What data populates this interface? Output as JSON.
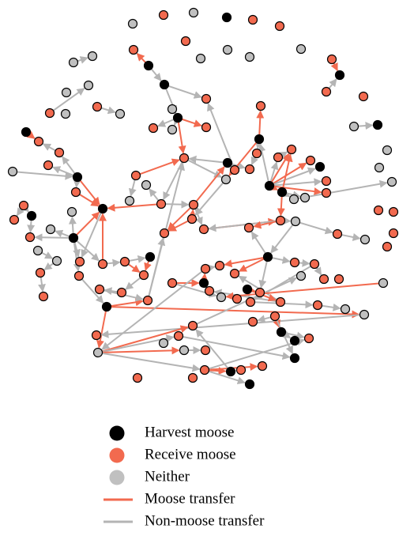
{
  "legend": {
    "items": [
      {
        "label": "Harvest moose",
        "color": "#000000"
      },
      {
        "label": "Receive moose",
        "color": "#f26a4f"
      },
      {
        "label": "Neither",
        "color": "#c0c0c0"
      },
      {
        "label": "Moose transfer",
        "color": "#f26a4f"
      },
      {
        "label": "Non-moose transfer",
        "color": "#b4b4b4"
      }
    ]
  }
}
